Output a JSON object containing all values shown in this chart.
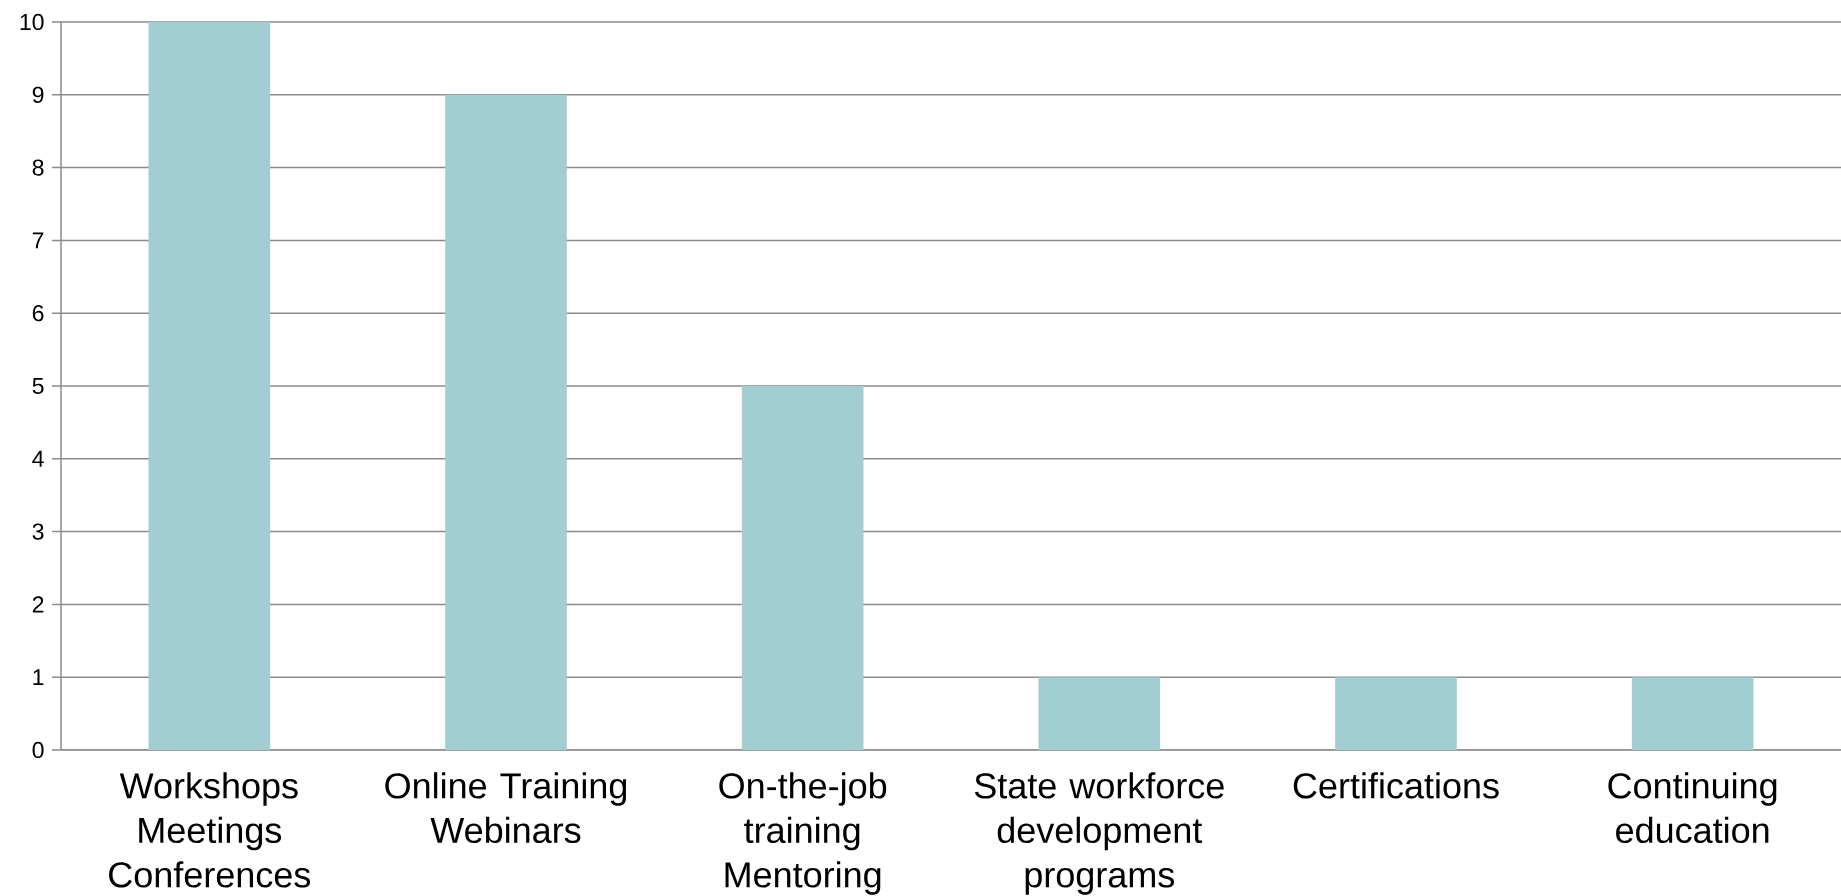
{
  "chart_data": {
    "type": "bar",
    "categories": [
      "Workshops Meetings Conferences",
      "Online Training Webinars",
      "On-the-job training Mentoring",
      "State workforce development programs",
      "Certifications",
      "Continuing education"
    ],
    "values": [
      10,
      9,
      5,
      1,
      1,
      1
    ],
    "color": "#a2cdd1",
    "ylim": [
      0,
      10
    ],
    "yticks": [
      0,
      1,
      2,
      3,
      4,
      5,
      6,
      7,
      8,
      9,
      10
    ],
    "grid": "y"
  }
}
